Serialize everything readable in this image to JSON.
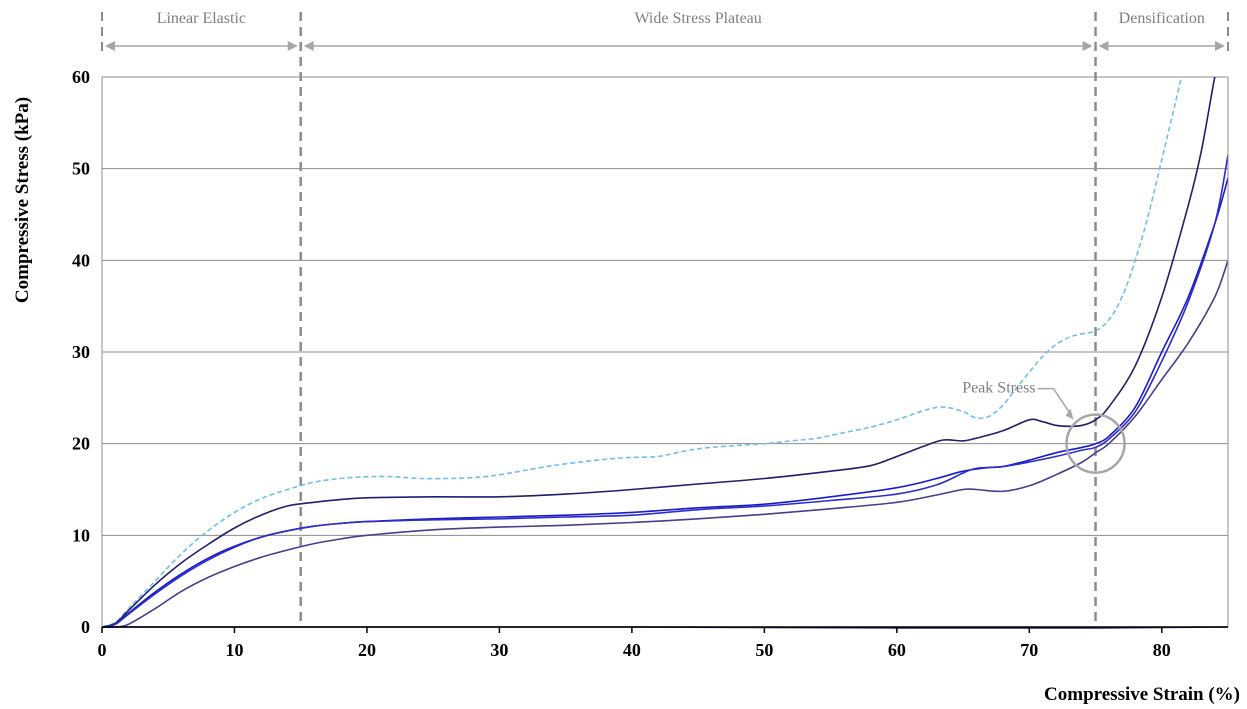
{
  "chart_data": {
    "type": "line",
    "xlabel": "Compressive Strain (%)",
    "ylabel": "Compressive Stress (kPa)",
    "xlim": [
      0,
      85
    ],
    "ylim": [
      0,
      60
    ],
    "xticks": [
      0,
      10,
      20,
      30,
      40,
      50,
      60,
      70,
      80
    ],
    "yticks": [
      0,
      10,
      20,
      30,
      40,
      50,
      60
    ],
    "grid": "horizontal",
    "legend": "none",
    "regions": [
      {
        "label": "Linear Elastic",
        "x_start": 0,
        "x_end": 15
      },
      {
        "label": "Wide Stress Plateau",
        "x_start": 15,
        "x_end": 75
      },
      {
        "label": "Densification",
        "x_start": 75,
        "x_end": 85
      }
    ],
    "annotations": [
      {
        "text": "Peak Stress",
        "x": 75,
        "y": 20
      }
    ],
    "series": [
      {
        "color": "#6fbfe8",
        "dashed": true,
        "points": [
          [
            0,
            0
          ],
          [
            1,
            0.5
          ],
          [
            2,
            2
          ],
          [
            4,
            5
          ],
          [
            6,
            8
          ],
          [
            8,
            10.5
          ],
          [
            10,
            12.5
          ],
          [
            12,
            14
          ],
          [
            14,
            15
          ],
          [
            16,
            15.8
          ],
          [
            18,
            16.2
          ],
          [
            20,
            16.4
          ],
          [
            22,
            16.4
          ],
          [
            24,
            16.2
          ],
          [
            26,
            16.2
          ],
          [
            28,
            16.3
          ],
          [
            30,
            16.6
          ],
          [
            34,
            17.6
          ],
          [
            38,
            18.3
          ],
          [
            40,
            18.5
          ],
          [
            42,
            18.6
          ],
          [
            44,
            19.2
          ],
          [
            46,
            19.6
          ],
          [
            50,
            20
          ],
          [
            52,
            20.3
          ],
          [
            54,
            20.6
          ],
          [
            56,
            21.2
          ],
          [
            58,
            21.8
          ],
          [
            60,
            22.6
          ],
          [
            62,
            23.6
          ],
          [
            63.5,
            24
          ],
          [
            65,
            23.5
          ],
          [
            66,
            22.8
          ],
          [
            67,
            23
          ],
          [
            68,
            24.2
          ],
          [
            69,
            26
          ],
          [
            70,
            27.8
          ],
          [
            71,
            29.5
          ],
          [
            72,
            30.8
          ],
          [
            73,
            31.6
          ],
          [
            74,
            32
          ],
          [
            75,
            32.3
          ],
          [
            76,
            33.5
          ],
          [
            77,
            36
          ],
          [
            78,
            40
          ],
          [
            79,
            45
          ],
          [
            80,
            51
          ],
          [
            81,
            57
          ],
          [
            81.8,
            62
          ]
        ]
      },
      {
        "color": "#1f1f6e",
        "dashed": false,
        "points": [
          [
            0,
            0
          ],
          [
            1,
            0.4
          ],
          [
            2,
            1.8
          ],
          [
            4,
            4.6
          ],
          [
            6,
            7
          ],
          [
            8,
            9
          ],
          [
            10,
            10.8
          ],
          [
            12,
            12.2
          ],
          [
            14,
            13.2
          ],
          [
            16,
            13.6
          ],
          [
            18,
            13.9
          ],
          [
            20,
            14.1
          ],
          [
            25,
            14.2
          ],
          [
            30,
            14.2
          ],
          [
            35,
            14.5
          ],
          [
            40,
            15
          ],
          [
            45,
            15.6
          ],
          [
            50,
            16.2
          ],
          [
            55,
            17
          ],
          [
            58,
            17.6
          ],
          [
            60,
            18.6
          ],
          [
            62,
            19.7
          ],
          [
            63.5,
            20.4
          ],
          [
            65,
            20.3
          ],
          [
            66,
            20.6
          ],
          [
            68,
            21.4
          ],
          [
            70,
            22.6
          ],
          [
            71,
            22.4
          ],
          [
            72,
            22
          ],
          [
            73,
            21.9
          ],
          [
            74,
            22
          ],
          [
            75,
            22.6
          ],
          [
            76,
            24
          ],
          [
            78,
            28.5
          ],
          [
            80,
            36
          ],
          [
            82,
            46
          ],
          [
            83,
            52
          ],
          [
            84,
            60
          ],
          [
            84.5,
            63
          ]
        ]
      },
      {
        "color": "#1a1acd",
        "dashed": false,
        "points": [
          [
            0,
            0
          ],
          [
            1,
            0.3
          ],
          [
            2,
            1.5
          ],
          [
            4,
            3.8
          ],
          [
            6,
            5.8
          ],
          [
            8,
            7.5
          ],
          [
            10,
            8.8
          ],
          [
            12,
            9.8
          ],
          [
            14,
            10.5
          ],
          [
            16,
            11
          ],
          [
            18,
            11.3
          ],
          [
            20,
            11.5
          ],
          [
            25,
            11.8
          ],
          [
            30,
            12
          ],
          [
            35,
            12.2
          ],
          [
            40,
            12.5
          ],
          [
            45,
            13
          ],
          [
            50,
            13.4
          ],
          [
            55,
            14.2
          ],
          [
            60,
            15.2
          ],
          [
            63,
            16.2
          ],
          [
            65,
            17
          ],
          [
            67,
            17.4
          ],
          [
            68,
            17.5
          ],
          [
            70,
            18.2
          ],
          [
            72,
            19
          ],
          [
            74,
            19.6
          ],
          [
            75,
            20
          ],
          [
            76,
            20.8
          ],
          [
            78,
            24
          ],
          [
            80,
            30
          ],
          [
            82,
            36
          ],
          [
            84,
            44
          ],
          [
            85,
            49
          ]
        ]
      },
      {
        "color": "#2d2dc9",
        "dashed": false,
        "points": [
          [
            0,
            0
          ],
          [
            1,
            0.3
          ],
          [
            2,
            1.4
          ],
          [
            4,
            3.6
          ],
          [
            6,
            5.6
          ],
          [
            8,
            7.3
          ],
          [
            10,
            8.7
          ],
          [
            12,
            9.8
          ],
          [
            14,
            10.5
          ],
          [
            16,
            11
          ],
          [
            18,
            11.3
          ],
          [
            20,
            11.5
          ],
          [
            25,
            11.7
          ],
          [
            30,
            11.8
          ],
          [
            35,
            12
          ],
          [
            40,
            12.2
          ],
          [
            45,
            12.8
          ],
          [
            50,
            13.2
          ],
          [
            55,
            13.8
          ],
          [
            60,
            14.5
          ],
          [
            63,
            15.5
          ],
          [
            65,
            16.8
          ],
          [
            66,
            17.3
          ],
          [
            68,
            17.5
          ],
          [
            70,
            18
          ],
          [
            72,
            18.6
          ],
          [
            74,
            19.3
          ],
          [
            75,
            19.6
          ],
          [
            76,
            20.5
          ],
          [
            78,
            23.5
          ],
          [
            80,
            29
          ],
          [
            82,
            35.5
          ],
          [
            84,
            44
          ],
          [
            85,
            51.5
          ]
        ]
      },
      {
        "color": "#4b3c8c",
        "dashed": false,
        "points": [
          [
            0,
            0
          ],
          [
            1,
            0
          ],
          [
            2,
            0.3
          ],
          [
            4,
            2
          ],
          [
            6,
            3.9
          ],
          [
            8,
            5.4
          ],
          [
            10,
            6.6
          ],
          [
            12,
            7.6
          ],
          [
            14,
            8.4
          ],
          [
            16,
            9.1
          ],
          [
            18,
            9.6
          ],
          [
            20,
            10
          ],
          [
            25,
            10.6
          ],
          [
            30,
            10.9
          ],
          [
            35,
            11.1
          ],
          [
            40,
            11.4
          ],
          [
            45,
            11.8
          ],
          [
            50,
            12.3
          ],
          [
            55,
            12.9
          ],
          [
            60,
            13.6
          ],
          [
            63,
            14.4
          ],
          [
            65,
            15
          ],
          [
            66,
            15
          ],
          [
            68,
            14.8
          ],
          [
            70,
            15.4
          ],
          [
            72,
            16.6
          ],
          [
            74,
            18
          ],
          [
            75,
            19
          ],
          [
            76,
            20
          ],
          [
            78,
            23
          ],
          [
            80,
            27
          ],
          [
            82,
            31
          ],
          [
            84,
            36
          ],
          [
            85,
            40
          ]
        ]
      },
      {
        "color": "#1f1f6e",
        "dashed": false,
        "points": [
          [
            0,
            0
          ],
          [
            20,
            0
          ],
          [
            40,
            0
          ],
          [
            60,
            -0.1
          ],
          [
            75,
            -0.1
          ],
          [
            85,
            0
          ]
        ]
      }
    ]
  }
}
